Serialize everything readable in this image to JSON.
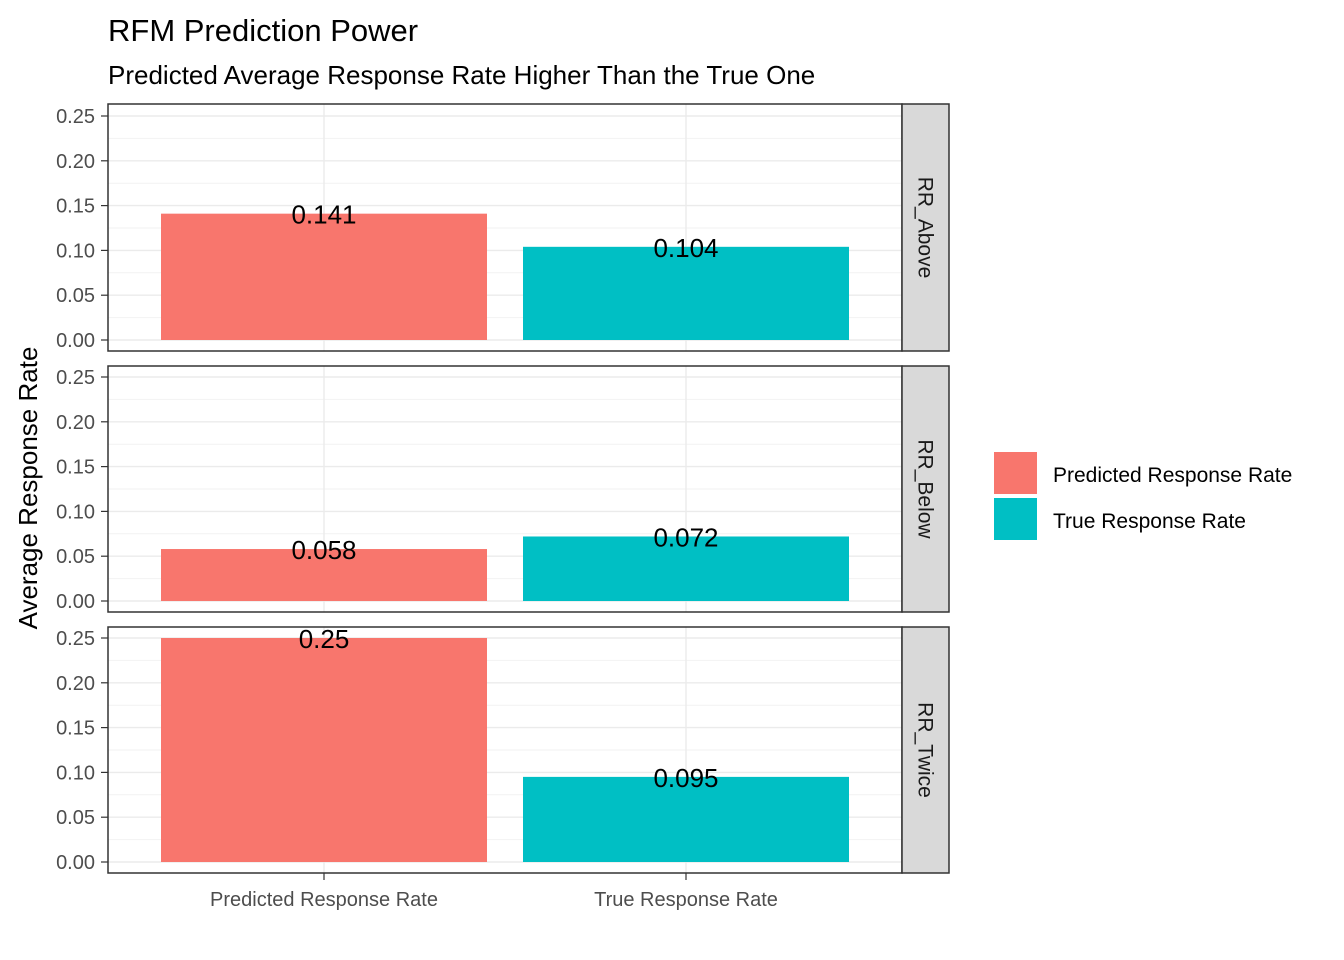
{
  "chart_data": {
    "type": "bar",
    "title": "RFM Prediction Power",
    "subtitle": "Predicted Average Response Rate Higher Than the True One",
    "xlabel": "",
    "ylabel": "Average Response Rate",
    "categories": [
      "Predicted Response Rate",
      "True Response Rate"
    ],
    "ylim": [
      0,
      0.25
    ],
    "yticks": [
      "0.00",
      "0.05",
      "0.10",
      "0.15",
      "0.20",
      "0.25"
    ],
    "grid": true,
    "legend_position": "right",
    "legend": {
      "entries": [
        {
          "label": "Predicted Response Rate",
          "color": "#F8766D"
        },
        {
          "label": "True Response Rate",
          "color": "#00BFC4"
        }
      ]
    },
    "facets": [
      {
        "label": "RR_Above",
        "values": [
          0.141,
          0.104
        ],
        "labels": [
          "0.141",
          "0.104"
        ]
      },
      {
        "label": "RR_Below",
        "values": [
          0.058,
          0.072
        ],
        "labels": [
          "0.058",
          "0.072"
        ]
      },
      {
        "label": "RR_Twice",
        "values": [
          0.25,
          0.095
        ],
        "labels": [
          "0.25",
          "0.095"
        ]
      }
    ]
  }
}
